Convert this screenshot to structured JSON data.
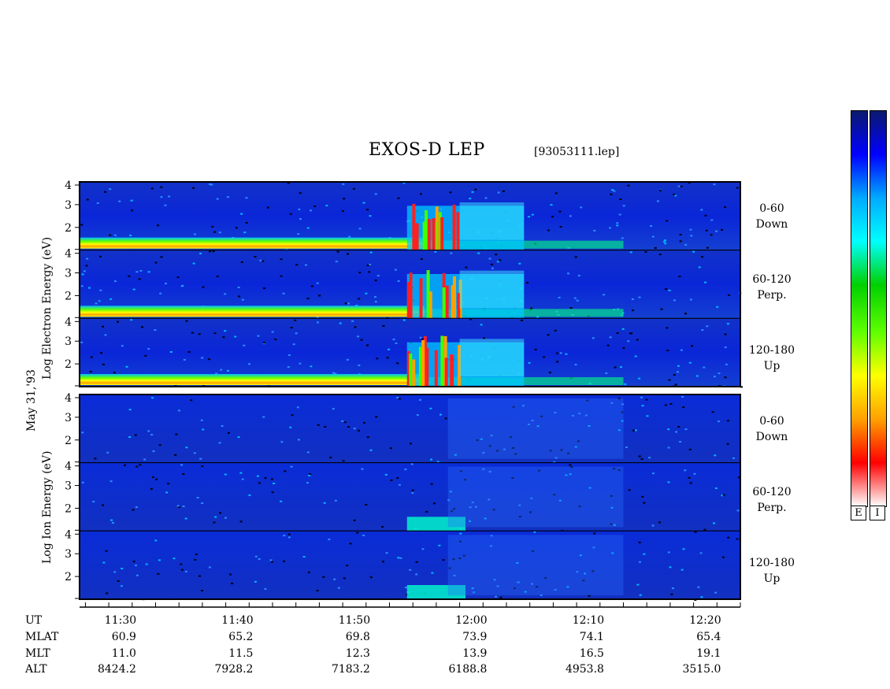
{
  "header": {
    "title": "EXOS-D LEP",
    "file": "[93053111.lep]"
  },
  "chart_data": {
    "type": "heatmap",
    "date_label": "May 31,'93",
    "groups": [
      {
        "id": "electron",
        "ylabel": "Log Electron Energy (eV)",
        "panels": [
          {
            "label_line1": "0-60",
            "label_line2": "Down",
            "yticks": [
              "4",
              "3",
              "2"
            ]
          },
          {
            "label_line1": "60-120",
            "label_line2": "Perp.",
            "yticks": [
              "4",
              "3",
              "2"
            ]
          },
          {
            "label_line1": "120-180",
            "label_line2": "Up",
            "yticks": [
              "4",
              "3",
              "2"
            ]
          }
        ]
      },
      {
        "id": "ion",
        "ylabel": "Log Ion Energy (eV)",
        "panels": [
          {
            "label_line1": "0-60",
            "label_line2": "Down",
            "yticks": [
              "4",
              "3",
              "2"
            ]
          },
          {
            "label_line1": "60-120",
            "label_line2": "Perp.",
            "yticks": [
              "4",
              "3",
              "2"
            ]
          },
          {
            "label_line1": "120-180",
            "label_line2": "Up",
            "yticks": [
              "4",
              "3",
              "2"
            ]
          }
        ]
      }
    ],
    "time_ticks_minutes": [
      690,
      700,
      710,
      720,
      730,
      740
    ],
    "x_range_minutes": [
      686.5,
      743
    ],
    "footer": {
      "rows": [
        {
          "label": "UT",
          "values": [
            "11:30",
            "11:40",
            "11:50",
            "12:00",
            "12:10",
            "12:20"
          ]
        },
        {
          "label": "MLAT",
          "values": [
            "60.9",
            "65.2",
            "69.8",
            "73.9",
            "74.1",
            "65.4"
          ]
        },
        {
          "label": "MLT",
          "values": [
            "11.0",
            "11.5",
            "12.3",
            "13.9",
            "16.5",
            "19.1"
          ]
        },
        {
          "label": "ALT",
          "values": [
            "8424.2",
            "7928.2",
            "7183.2",
            "6188.8",
            "4953.8",
            "3515.0"
          ]
        }
      ]
    },
    "colorbars": [
      {
        "label": "E"
      },
      {
        "label": "I"
      }
    ],
    "colorscale": [
      "#0a1a6e",
      "#0000ff",
      "#00aaff",
      "#00ffff",
      "#00d000",
      "#60ff00",
      "#ffff00",
      "#ffa000",
      "#ff0000",
      "#ffffff"
    ]
  }
}
